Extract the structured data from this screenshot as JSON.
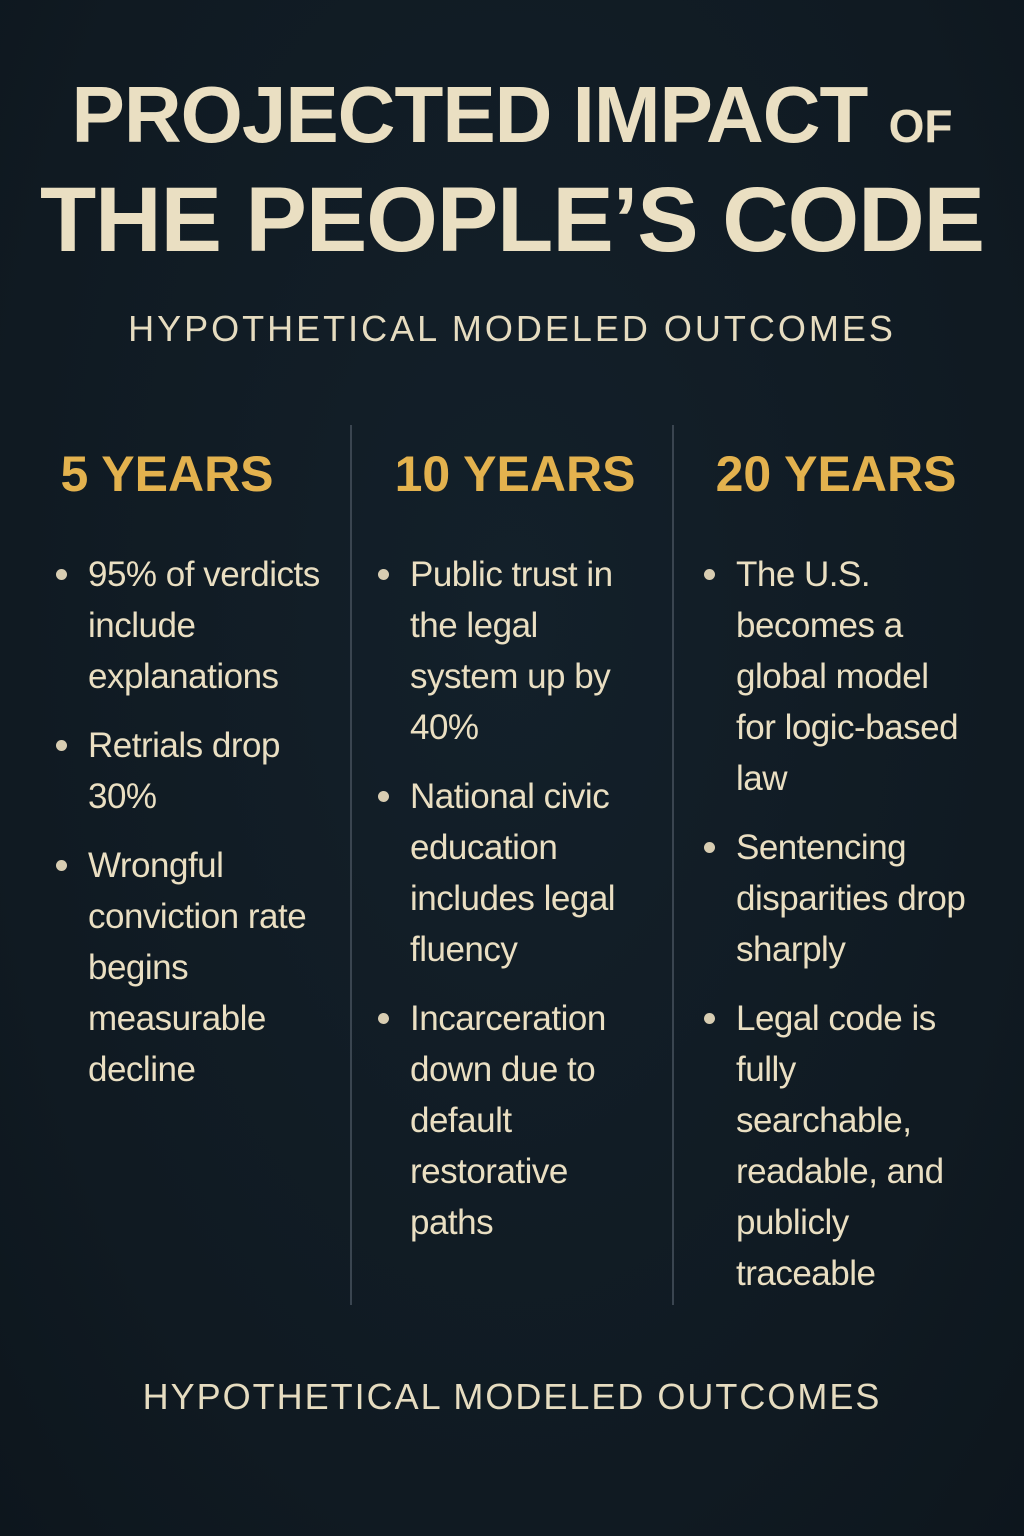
{
  "title": {
    "line1_main": "PROJECTED IMPACT",
    "line1_small": "OF",
    "line2": "THE PEOPLE’S CODE"
  },
  "subtitle_top": "HYPOTHETICAL MODELED OUTCOMES",
  "columns": [
    {
      "heading": "5 YEARS",
      "items": [
        "95% of verdicts include explanations",
        "Retrials drop 30%",
        "Wrongful conviction rate begins measurable decline"
      ]
    },
    {
      "heading": "10 YEARS",
      "items": [
        "Public trust in the legal system up by 40%",
        "National civic education includes legal fluency",
        "Incarceration down due to default restorative paths"
      ]
    },
    {
      "heading": "20 YEARS",
      "items": [
        "The U.S. becomes a global model for logic-based law",
        "Sentencing disparities drop sharply",
        "Legal code is fully searchable, readable, and publicly traceable"
      ]
    }
  ],
  "subtitle_bottom": "HYPOTHETICAL MODELED OUTCOMES",
  "colors": {
    "background": "#111c25",
    "title": "#eadfc2",
    "heading_gold": "#e3b24e",
    "divider": "#3a4550"
  }
}
